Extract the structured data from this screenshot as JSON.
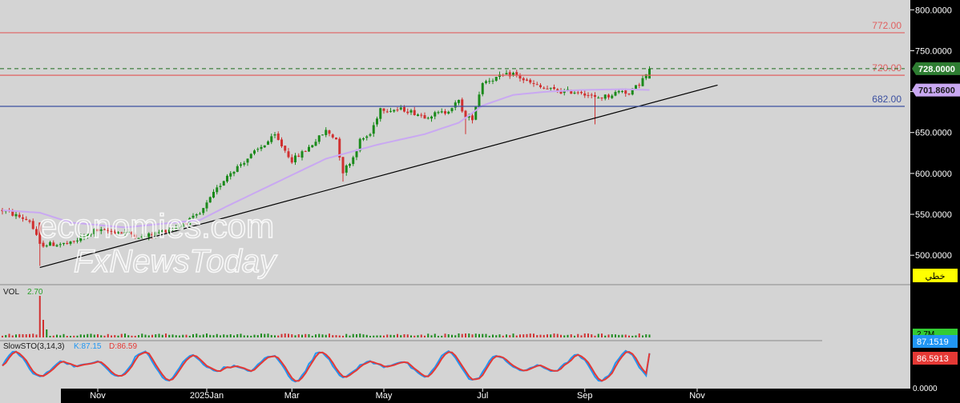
{
  "chart_data": {
    "type": "candlestick",
    "instrument_panel": {
      "y_ticks": [
        500,
        550,
        600,
        650,
        700,
        750,
        800
      ],
      "y_tick_labels": [
        "500.0000",
        "550.0000",
        "600.0000",
        "650.0000",
        "700.0000",
        "750.0000",
        "800.0000"
      ],
      "ylim": [
        465,
        812
      ],
      "x_labels": [
        {
          "label": "Nov",
          "bar": 28
        },
        {
          "label": "2025Jan",
          "bar": 60
        },
        {
          "label": "Mar",
          "bar": 85
        },
        {
          "label": "May",
          "bar": 112
        },
        {
          "label": "Jul",
          "bar": 141
        },
        {
          "label": "Sep",
          "bar": 171
        },
        {
          "label": "Nov",
          "bar": 204
        }
      ],
      "bar_count": 218,
      "anchors": [
        [
          0,
          555
        ],
        [
          8,
          542
        ],
        [
          11,
          513
        ],
        [
          20,
          514
        ],
        [
          27,
          530
        ],
        [
          36,
          528
        ],
        [
          41,
          522
        ],
        [
          46,
          528
        ],
        [
          52,
          536
        ],
        [
          58,
          550
        ],
        [
          62,
          575
        ],
        [
          66,
          598
        ],
        [
          69,
          608
        ],
        [
          73,
          622
        ],
        [
          80,
          646
        ],
        [
          85,
          616
        ],
        [
          89,
          628
        ],
        [
          95,
          652
        ],
        [
          98,
          642
        ],
        [
          100,
          602
        ],
        [
          103,
          620
        ],
        [
          105,
          640
        ],
        [
          108,
          648
        ],
        [
          111,
          680
        ],
        [
          113,
          678
        ],
        [
          118,
          678
        ],
        [
          124,
          670
        ],
        [
          130,
          675
        ],
        [
          134,
          688
        ],
        [
          136,
          668
        ],
        [
          138,
          668
        ],
        [
          141,
          712
        ],
        [
          146,
          718
        ],
        [
          150,
          722
        ],
        [
          154,
          712
        ],
        [
          158,
          705
        ],
        [
          164,
          700
        ],
        [
          170,
          700
        ],
        [
          174,
          692
        ],
        [
          178,
          695
        ],
        [
          182,
          702
        ],
        [
          184,
          697
        ],
        [
          187,
          710
        ],
        [
          190,
          726
        ]
      ],
      "ma_anchors": [
        [
          0,
          555
        ],
        [
          11,
          552
        ],
        [
          20,
          540
        ],
        [
          36,
          534
        ],
        [
          58,
          543
        ],
        [
          66,
          560
        ],
        [
          80,
          588
        ],
        [
          95,
          618
        ],
        [
          110,
          635
        ],
        [
          124,
          648
        ],
        [
          134,
          662
        ],
        [
          141,
          683
        ],
        [
          150,
          696
        ],
        [
          160,
          700
        ],
        [
          170,
          702
        ],
        [
          182,
          703
        ],
        [
          190,
          702
        ]
      ],
      "support_line": {
        "from": {
          "bar": 11,
          "price": 485
        },
        "to": {
          "bar": 210,
          "price": 708
        }
      },
      "horizontal_levels": [
        {
          "value": 772,
          "label": "772.00",
          "color": "#e06060"
        },
        {
          "value": 720,
          "label": "720.00",
          "color": "#e06060"
        },
        {
          "value": 682,
          "label": "682.00",
          "color": "#3a4fa0"
        }
      ],
      "last_price": {
        "value": 728,
        "label": "728.0000",
        "color": "#2e7d32"
      },
      "ma_value": {
        "value": 701.86,
        "label": "701.8600",
        "color": "#c9a8f2"
      },
      "chart_type_badge": "خطي"
    },
    "volume_panel": {
      "title": "VOL",
      "value_label": "2.70",
      "right_label": "2.7M",
      "spike_bar": 11
    },
    "stochastic_panel": {
      "title": "SlowSTO(3,14,3)",
      "k_label": "K:87.15",
      "d_label": "D:86.59",
      "k_value": {
        "value": 87.15,
        "label": "87.1519",
        "color": "#2196f3"
      },
      "d_value": {
        "value": 86.59,
        "label": "86.5913",
        "color": "#e53935"
      },
      "axis_label": "0.0000"
    },
    "watermark": {
      "line1": "economies.com",
      "line2": "FxNewsToday"
    }
  },
  "colors": {
    "background": "#d4d4d4",
    "axis_background": "#000000",
    "bull": "#1b8a1b",
    "bear": "#d03030",
    "moving_average": "#c9a8f2",
    "support_line": "#000000",
    "stoch_k": "#2196f3",
    "stoch_d": "#e53935"
  }
}
